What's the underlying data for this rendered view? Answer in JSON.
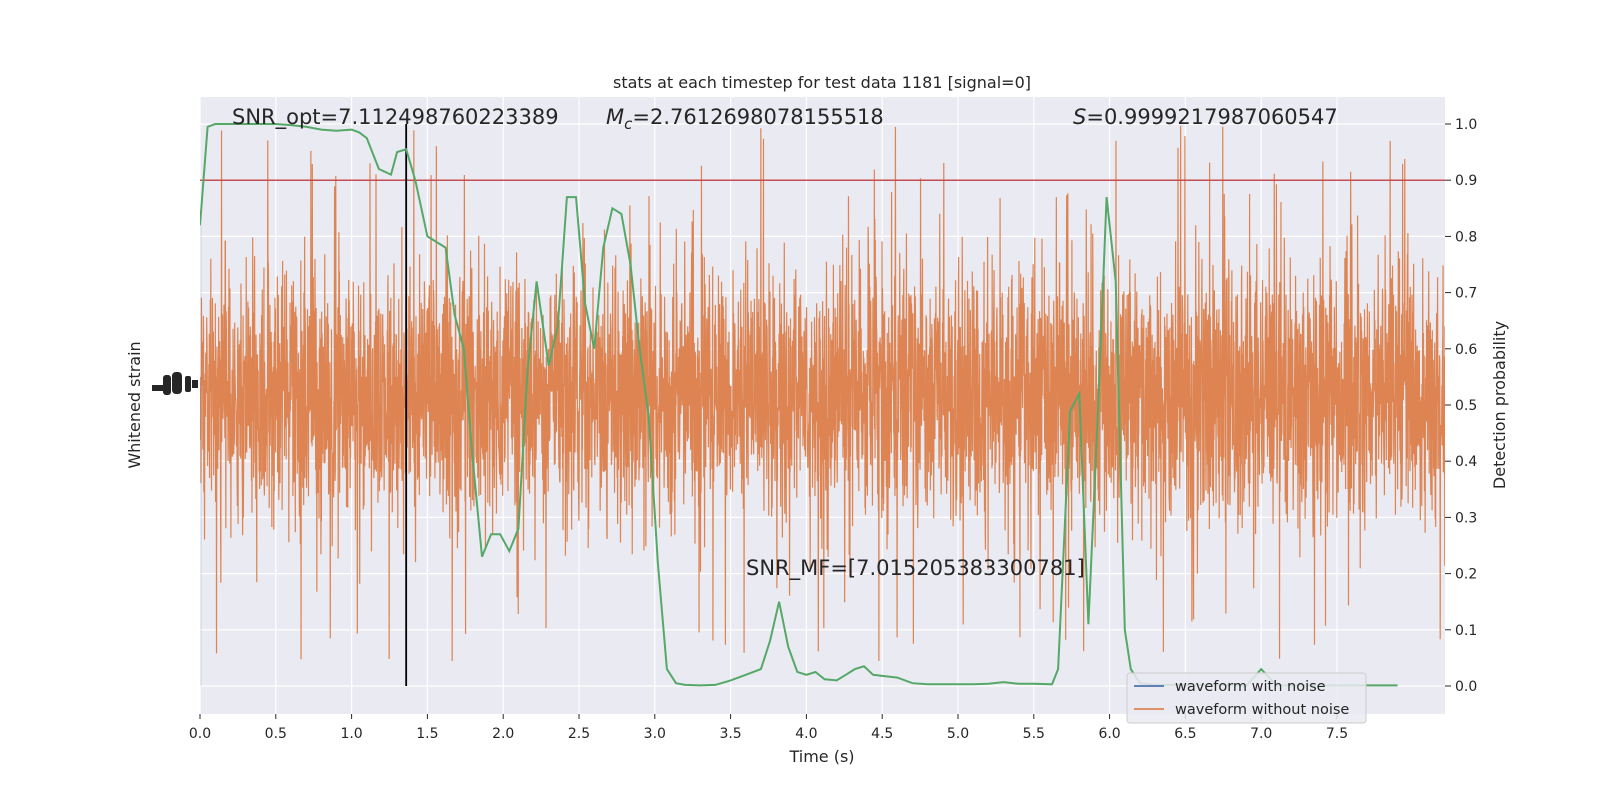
{
  "chart_data": {
    "type": "line",
    "title": "stats at each timestep for test data 1181 [signal=0]",
    "xlabel": "Time (s)",
    "ylabel_left": "Whitened strain",
    "ylabel_right": "Detection probability",
    "xlim": [
      0,
      8
    ],
    "ylim_right": [
      -0.05,
      1.05
    ],
    "x_ticks": [
      0.0,
      0.5,
      1.0,
      1.5,
      2.0,
      2.5,
      3.0,
      3.5,
      4.0,
      4.5,
      5.0,
      5.5,
      6.0,
      6.5,
      7.0,
      7.5
    ],
    "x_tick_labels": [
      "0.0",
      "0.5",
      "1.0",
      "1.5",
      "2.0",
      "2.5",
      "3.0",
      "3.5",
      "4.0",
      "4.5",
      "5.0",
      "5.5",
      "6.0",
      "6.5",
      "7.0",
      "7.5"
    ],
    "y_right_ticks": [
      0.0,
      0.1,
      0.2,
      0.3,
      0.4,
      0.5,
      0.6,
      0.7,
      0.8,
      0.9,
      1.0
    ],
    "y_right_tick_labels": [
      "0.0",
      "0.1",
      "0.2",
      "0.3",
      "0.4",
      "0.5",
      "0.6",
      "0.7",
      "0.8",
      "0.9",
      "1.0"
    ],
    "grid": true,
    "legend_position": "lower-right",
    "series": [
      {
        "name": "waveform with noise",
        "color": "#4c72b0",
        "kind": "strain"
      },
      {
        "name": "waveform without noise",
        "color": "#dd8452",
        "kind": "strain"
      },
      {
        "color": "#55a868",
        "kind": "detection_probability",
        "x": [
          0.0,
          0.05,
          0.1,
          0.2,
          0.3,
          0.4,
          0.5,
          0.6,
          0.7,
          0.8,
          0.9,
          1.0,
          1.05,
          1.1,
          1.18,
          1.26,
          1.3,
          1.36,
          1.42,
          1.5,
          1.56,
          1.62,
          1.68,
          1.74,
          1.8,
          1.86,
          1.92,
          1.98,
          2.04,
          2.1,
          2.16,
          2.22,
          2.3,
          2.36,
          2.42,
          2.48,
          2.54,
          2.6,
          2.66,
          2.72,
          2.78,
          2.84,
          2.9,
          2.96,
          3.02,
          3.08,
          3.14,
          3.2,
          3.3,
          3.4,
          3.5,
          3.6,
          3.7,
          3.76,
          3.82,
          3.88,
          3.94,
          4.0,
          4.06,
          4.12,
          4.2,
          4.26,
          4.32,
          4.38,
          4.44,
          4.5,
          4.6,
          4.7,
          4.8,
          4.9,
          5.0,
          5.1,
          5.2,
          5.3,
          5.4,
          5.5,
          5.62,
          5.66,
          5.74,
          5.8,
          5.86,
          5.92,
          5.98,
          6.04,
          6.1,
          6.14,
          6.2,
          6.3,
          6.4,
          6.6,
          6.8,
          6.9,
          7.0,
          7.1,
          7.3,
          7.5,
          7.7,
          7.9
        ],
        "y": [
          0.82,
          0.995,
          1.0,
          1.0,
          1.0,
          1.0,
          1.0,
          0.998,
          0.995,
          0.99,
          0.988,
          0.99,
          0.985,
          0.975,
          0.92,
          0.91,
          0.95,
          0.955,
          0.9,
          0.8,
          0.79,
          0.78,
          0.66,
          0.6,
          0.4,
          0.23,
          0.27,
          0.27,
          0.24,
          0.28,
          0.56,
          0.72,
          0.57,
          0.64,
          0.87,
          0.87,
          0.68,
          0.6,
          0.78,
          0.85,
          0.84,
          0.75,
          0.6,
          0.48,
          0.22,
          0.03,
          0.005,
          0.002,
          0.001,
          0.002,
          0.01,
          0.02,
          0.03,
          0.08,
          0.15,
          0.07,
          0.025,
          0.02,
          0.025,
          0.012,
          0.01,
          0.02,
          0.03,
          0.035,
          0.02,
          0.018,
          0.015,
          0.005,
          0.003,
          0.003,
          0.003,
          0.003,
          0.004,
          0.007,
          0.004,
          0.004,
          0.003,
          0.03,
          0.49,
          0.52,
          0.11,
          0.47,
          0.87,
          0.72,
          0.1,
          0.03,
          0.005,
          0.002,
          0.002,
          0.002,
          0.002,
          0.0,
          0.03,
          0.001,
          0.001,
          0.001,
          0.001,
          0.001
        ]
      }
    ],
    "hlines": [
      {
        "y": 0.9,
        "color": "#c44e52"
      }
    ],
    "vlines": [
      {
        "x": 1.36,
        "color": "#000000",
        "y_from": 0.0,
        "y_to": 1.0
      }
    ],
    "annotations": [
      {
        "text": "SNR_opt=7.112498760223389"
      },
      {
        "text_symbol": "M",
        "text_subscript": "c",
        "text_value": "=2.7612698078155518"
      },
      {
        "text_symbol": "S",
        "text_value": "=0.9999217987060547"
      },
      {
        "text": "SNR_MF=[7.015205383300781]"
      }
    ]
  },
  "colors": {
    "plot_bg": "#eaeaf2",
    "grid": "#ffffff",
    "text": "#262626"
  }
}
